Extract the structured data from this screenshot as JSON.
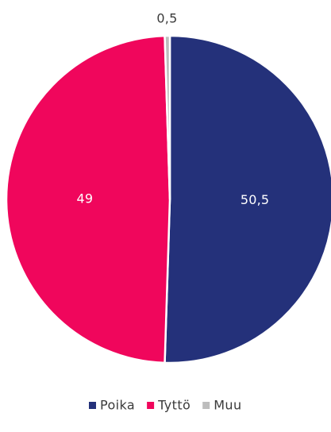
{
  "chart_data": {
    "type": "pie",
    "title": "",
    "series": [
      {
        "name": "Poika",
        "value": 50.5,
        "label": "50,5",
        "color": "#24317a"
      },
      {
        "name": "Tyttö",
        "value": 49,
        "label": "49",
        "color": "#f0065c"
      },
      {
        "name": "Muu",
        "value": 0.5,
        "label": "0,5",
        "color": "#bdbdbd"
      }
    ],
    "start_angle_deg": 0,
    "direction": "clockwise",
    "legend_position": "bottom"
  }
}
